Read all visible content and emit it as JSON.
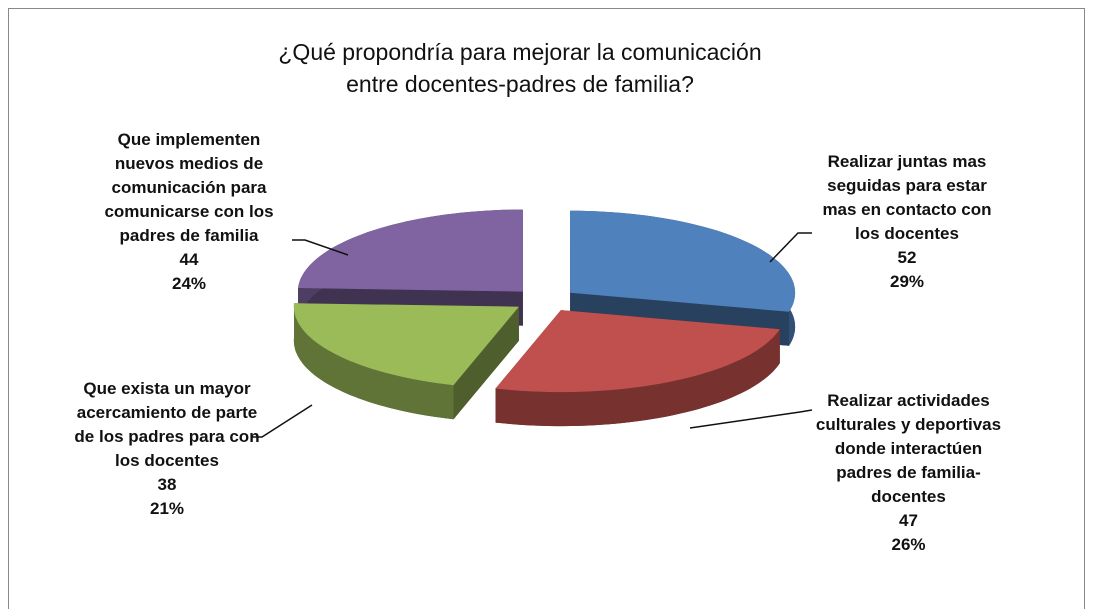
{
  "chart_data": {
    "type": "pie3d",
    "title": "¿Qué propondría para mejorar la comunicación entre docentes-padres de familia?",
    "categories": [
      "Realizar juntas mas seguidas para estar mas en contacto con los docentes",
      "Realizar actividades culturales y deportivas donde interactúen padres de familia-docentes",
      "Que exista un mayor acercamiento de parte de los padres para con los docentes",
      "Que implementen nuevos medios de comunicación para comunicarse con los padres de familia"
    ],
    "values": [
      52,
      47,
      38,
      44
    ],
    "percentages": [
      29,
      26,
      21,
      24
    ],
    "percentage_labels": [
      "29%",
      "26%",
      "21%",
      "24%"
    ],
    "colors": [
      "#4f81bd",
      "#c0504d",
      "#9bbb59",
      "#8064a2"
    ]
  }
}
